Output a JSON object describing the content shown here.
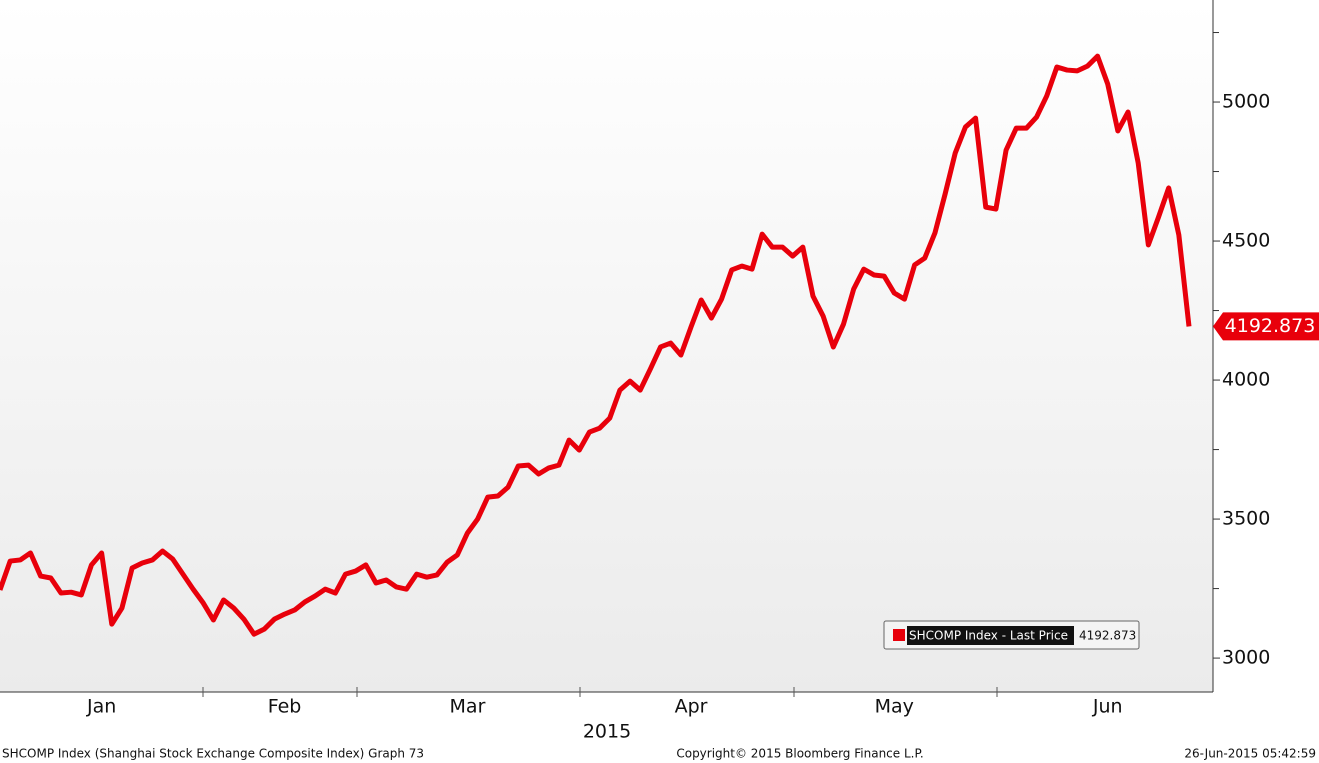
{
  "chart_data": {
    "type": "line",
    "series": [
      {
        "name": "SHCOMP Index - Last Price",
        "color": "#e8000b",
        "values": [
          3245,
          3349,
          3353,
          3378,
          3295,
          3288,
          3234,
          3237,
          3227,
          3335,
          3378,
          3122,
          3180,
          3324,
          3342,
          3353,
          3385,
          3356,
          3302,
          3248,
          3198,
          3137,
          3209,
          3180,
          3140,
          3086,
          3104,
          3140,
          3158,
          3173,
          3202,
          3223,
          3248,
          3234,
          3302,
          3313,
          3335,
          3270,
          3281,
          3256,
          3248,
          3302,
          3291,
          3299,
          3345,
          3371,
          3450,
          3500,
          3579,
          3583,
          3615,
          3691,
          3694,
          3662,
          3684,
          3694,
          3784,
          3748,
          3813,
          3827,
          3863,
          3964,
          3996,
          3964,
          4040,
          4119,
          4133,
          4090,
          4191,
          4288,
          4223,
          4291,
          4396,
          4410,
          4399,
          4525,
          4478,
          4478,
          4446,
          4478,
          4302,
          4230,
          4119,
          4201,
          4327,
          4399,
          4378,
          4374,
          4313,
          4291,
          4414,
          4439,
          4529,
          4669,
          4817,
          4910,
          4942,
          4622,
          4615,
          4827,
          4906,
          4906,
          4946,
          5022,
          5126,
          5115,
          5112,
          5129,
          5165,
          5065,
          4896,
          4964,
          4781,
          4486,
          4586,
          4691,
          4522,
          4192.873
        ]
      }
    ],
    "categories": [
      null,
      null,
      null,
      null,
      null,
      null,
      null,
      null,
      null,
      null,
      "Jan",
      null,
      null,
      null,
      null,
      null,
      null,
      null,
      null,
      null,
      null,
      null,
      null,
      null,
      null,
      null,
      null,
      null,
      "Feb",
      null,
      null,
      null,
      null,
      null,
      null,
      null,
      null,
      null,
      null,
      null,
      null,
      null,
      null,
      null,
      null,
      null,
      "Mar",
      null,
      null,
      null,
      null,
      null,
      null,
      null,
      null,
      null,
      null,
      null,
      null,
      null,
      null,
      null,
      null,
      null,
      null,
      null,
      null,
      null,
      "Apr",
      null,
      null,
      null,
      null,
      null,
      null,
      null,
      null,
      null,
      null,
      null,
      null,
      null,
      null,
      null,
      null,
      null,
      null,
      null,
      "May",
      null,
      null,
      null,
      null,
      null,
      null,
      null,
      null,
      null,
      null,
      null,
      null,
      null,
      null,
      null,
      null,
      null,
      null,
      null,
      null,
      "Jun",
      null,
      null,
      null,
      null,
      null,
      null,
      null,
      null
    ],
    "xlabel": "2015",
    "ylim": [
      2878,
      5367
    ],
    "yticks": [
      3000,
      3500,
      4000,
      4500,
      5000
    ],
    "minor_yticks": [
      3250,
      3750,
      4250,
      4750,
      5250
    ]
  },
  "footer": {
    "left": "SHCOMP Index (Shanghai Stock Exchange Composite Index) Graph 73",
    "center": "Copyright© 2015 Bloomberg Finance L.P.",
    "right": "26-Jun-2015 05:42:59"
  }
}
